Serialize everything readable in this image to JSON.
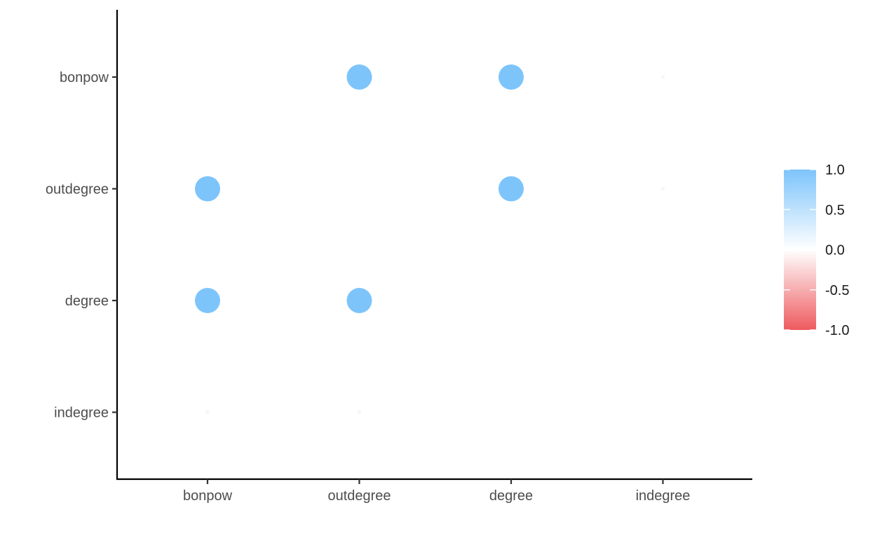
{
  "chart_data": {
    "type": "scatter",
    "subtype": "correlation-dot-matrix",
    "title": "",
    "xlabel": "",
    "ylabel": "",
    "x_categories": [
      "bonpow",
      "outdegree",
      "degree",
      "indegree"
    ],
    "y_categories": [
      "bonpow",
      "outdegree",
      "degree",
      "indegree"
    ],
    "points": [
      {
        "x": "outdegree",
        "y": "bonpow",
        "value": 1.0
      },
      {
        "x": "degree",
        "y": "bonpow",
        "value": 1.0
      },
      {
        "x": "indegree",
        "y": "bonpow",
        "value": 0.0
      },
      {
        "x": "bonpow",
        "y": "outdegree",
        "value": 1.0
      },
      {
        "x": "degree",
        "y": "outdegree",
        "value": 1.0
      },
      {
        "x": "indegree",
        "y": "outdegree",
        "value": 0.0
      },
      {
        "x": "bonpow",
        "y": "degree",
        "value": 1.0
      },
      {
        "x": "outdegree",
        "y": "degree",
        "value": 1.0
      },
      {
        "x": "bonpow",
        "y": "indegree",
        "value": 0.0
      },
      {
        "x": "outdegree",
        "y": "indegree",
        "value": 0.0
      }
    ],
    "legend": {
      "type": "colorbar",
      "position": "right",
      "range": [
        -1.0,
        1.0
      ],
      "breaks": [
        1.0,
        0.5,
        0.0,
        -0.5,
        -1.0
      ],
      "break_labels": [
        "1.0",
        "0.5",
        "0.0",
        "-0.5",
        "-1.0"
      ],
      "colors": {
        "low": "#EE5A5E",
        "mid": "#FFFFFF",
        "high": "#7DC4FB"
      }
    },
    "grid": false
  }
}
